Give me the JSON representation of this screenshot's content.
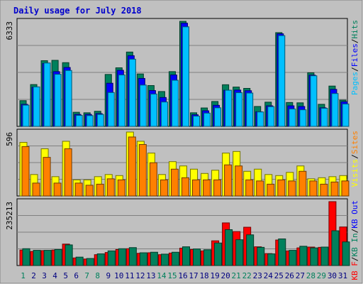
{
  "title": "Daily usage for July 2018",
  "colors": {
    "background": "#c0c0c0",
    "border": "#808080",
    "title": "#0000cc",
    "hits": "#00805c",
    "files": "#0000ff",
    "pages": "#00c0ff",
    "visits": "#ffff00",
    "sites": "#ff8000",
    "kb_in": "#00805c",
    "kb_out": "#0000ff",
    "kb_f": "#ff0000",
    "weekend_day": "#00805c",
    "weekday": "#000080",
    "axis_text": "#000000"
  },
  "chart_data": [
    {
      "type": "bar",
      "panel": "top",
      "max_label": "6333",
      "ylim": [
        0,
        6333
      ],
      "legend": [
        {
          "text": "Pages",
          "color": "#00c0ff"
        },
        {
          "text": "/",
          "color": "#000000"
        },
        {
          "text": "Files",
          "color": "#0000ff"
        },
        {
          "text": "/",
          "color": "#000000"
        },
        {
          "text": "Hits",
          "color": "#00805c"
        }
      ],
      "categories": [
        "1",
        "2",
        "3",
        "4",
        "5",
        "6",
        "7",
        "8",
        "9",
        "10",
        "11",
        "12",
        "13",
        "14",
        "15",
        "16",
        "17",
        "18",
        "19",
        "20",
        "21",
        "22",
        "23",
        "24",
        "25",
        "26",
        "27",
        "28",
        "29",
        "30",
        "31"
      ],
      "series": [
        {
          "name": "Hits",
          "color": "#00805c",
          "values": [
            1550,
            2520,
            3960,
            3980,
            3840,
            850,
            820,
            910,
            3130,
            3530,
            4480,
            3160,
            2460,
            2100,
            3300,
            6330,
            820,
            1110,
            1500,
            2510,
            2370,
            2290,
            1200,
            1460,
            5650,
            1440,
            1420,
            3230,
            1330,
            2430,
            1580
          ]
        },
        {
          "name": "Files",
          "color": "#0000ff",
          "values": [
            1330,
            2360,
            3790,
            3300,
            3550,
            720,
            720,
            770,
            2600,
            3380,
            4260,
            2890,
            2160,
            1740,
            3100,
            6220,
            700,
            940,
            1270,
            2180,
            2190,
            2150,
            880,
            1240,
            5580,
            1240,
            1200,
            3090,
            1120,
            2230,
            1480
          ]
        },
        {
          "name": "Pages",
          "color": "#00c0ff",
          "values": [
            1280,
            2380,
            3820,
            3140,
            3370,
            660,
            650,
            720,
            2040,
            3100,
            4050,
            2490,
            1950,
            1470,
            2780,
            6000,
            620,
            800,
            1120,
            2180,
            2030,
            2010,
            870,
            1190,
            5470,
            1050,
            1000,
            3050,
            1090,
            1980,
            1350
          ]
        }
      ]
    },
    {
      "type": "bar",
      "panel": "middle",
      "max_label": "596",
      "ylim": [
        0,
        596
      ],
      "legend": [
        {
          "text": "Visits",
          "color": "#ffff00"
        },
        {
          "text": "/",
          "color": "#000000"
        },
        {
          "text": "Sites",
          "color": "#ff8000"
        }
      ],
      "categories": [
        "1",
        "2",
        "3",
        "4",
        "5",
        "6",
        "7",
        "8",
        "9",
        "10",
        "11",
        "12",
        "13",
        "14",
        "15",
        "16",
        "17",
        "18",
        "19",
        "20",
        "21",
        "22",
        "23",
        "24",
        "25",
        "26",
        "27",
        "28",
        "29",
        "30",
        "31"
      ],
      "series": [
        {
          "name": "Visits",
          "color": "#ffff00",
          "values": [
            500,
            200,
            440,
            180,
            510,
            150,
            150,
            180,
            200,
            190,
            605,
            510,
            400,
            200,
            320,
            280,
            250,
            210,
            240,
            400,
            415,
            230,
            250,
            200,
            190,
            220,
            280,
            160,
            170,
            180,
            190
          ]
        },
        {
          "name": "Sites",
          "color": "#ff8000",
          "values": [
            460,
            120,
            360,
            120,
            440,
            120,
            100,
            110,
            160,
            150,
            550,
            480,
            310,
            150,
            250,
            170,
            150,
            150,
            150,
            290,
            280,
            150,
            140,
            110,
            150,
            140,
            230,
            140,
            110,
            130,
            140
          ]
        }
      ]
    },
    {
      "type": "bar",
      "panel": "bottom",
      "max_label": "235213",
      "ylim": [
        0,
        235213
      ],
      "legend": [
        {
          "text": "KB F",
          "color": "#ff0000"
        },
        {
          "text": "/",
          "color": "#000000"
        },
        {
          "text": "KB In",
          "color": "#00805c"
        },
        {
          "text": "/",
          "color": "#000000"
        },
        {
          "text": "KB Out",
          "color": "#0000ff"
        }
      ],
      "categories": [
        "1",
        "2",
        "3",
        "4",
        "5",
        "6",
        "7",
        "8",
        "9",
        "10",
        "11",
        "12",
        "13",
        "14",
        "15",
        "16",
        "17",
        "18",
        "19",
        "20",
        "21",
        "22",
        "23",
        "24",
        "25",
        "26",
        "27",
        "28",
        "29",
        "30",
        "31"
      ],
      "series": [
        {
          "name": "KB F",
          "color": "#ff0000",
          "values": [
            57000,
            52000,
            55000,
            57000,
            79000,
            28000,
            24000,
            40000,
            48000,
            59000,
            62000,
            45000,
            47000,
            40000,
            46000,
            64000,
            59000,
            54000,
            91000,
            157000,
            125000,
            141000,
            69000,
            44000,
            94000,
            54000,
            65000,
            68000,
            67000,
            240000,
            142000
          ]
        },
        {
          "name": "KB In",
          "color": "#00805c",
          "values": [
            62000,
            56000,
            56000,
            59000,
            76000,
            31000,
            26000,
            43000,
            54000,
            62000,
            66000,
            47000,
            49000,
            42000,
            49000,
            69000,
            61000,
            58000,
            83000,
            132000,
            95000,
            113000,
            67000,
            43000,
            98000,
            56000,
            71000,
            65000,
            68000,
            128000,
            87000
          ]
        }
      ]
    }
  ],
  "x_labels": [
    {
      "text": "1",
      "weekend": true
    },
    {
      "text": "2",
      "weekend": false
    },
    {
      "text": "3",
      "weekend": false
    },
    {
      "text": "4",
      "weekend": false
    },
    {
      "text": "5",
      "weekend": false
    },
    {
      "text": "6",
      "weekend": false
    },
    {
      "text": "7",
      "weekend": true
    },
    {
      "text": "8",
      "weekend": true
    },
    {
      "text": "9",
      "weekend": false
    },
    {
      "text": "10",
      "weekend": false
    },
    {
      "text": "11",
      "weekend": false
    },
    {
      "text": "12",
      "weekend": false
    },
    {
      "text": "13",
      "weekend": false
    },
    {
      "text": "14",
      "weekend": true
    },
    {
      "text": "15",
      "weekend": true
    },
    {
      "text": "16",
      "weekend": false
    },
    {
      "text": "17",
      "weekend": false
    },
    {
      "text": "18",
      "weekend": false
    },
    {
      "text": "19",
      "weekend": false
    },
    {
      "text": "20",
      "weekend": false
    },
    {
      "text": "21",
      "weekend": true
    },
    {
      "text": "22",
      "weekend": true
    },
    {
      "text": "23",
      "weekend": false
    },
    {
      "text": "24",
      "weekend": false
    },
    {
      "text": "25",
      "weekend": false
    },
    {
      "text": "26",
      "weekend": false
    },
    {
      "text": "27",
      "weekend": false
    },
    {
      "text": "28",
      "weekend": true
    },
    {
      "text": "29",
      "weekend": true
    },
    {
      "text": "30",
      "weekend": false
    },
    {
      "text": "31",
      "weekend": false
    }
  ]
}
